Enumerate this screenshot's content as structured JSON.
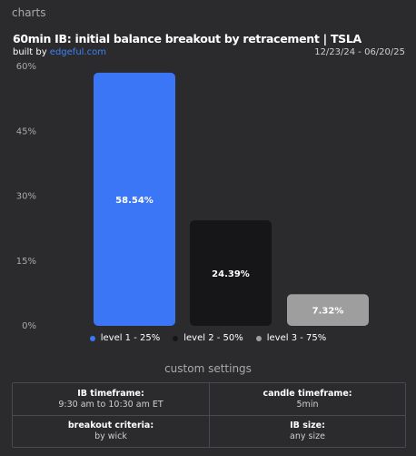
{
  "header": {
    "section_label": "charts",
    "title": "60min IB: initial balance breakout by retracement | TSLA",
    "built_by_prefix": "built by ",
    "built_by_link": "edgeful.com",
    "date_range": "12/23/24 - 06/20/25"
  },
  "chart_data": {
    "type": "bar",
    "categories": [
      "level 1 - 25%",
      "level 2 - 50%",
      "level 3 - 75%"
    ],
    "values": [
      58.54,
      24.39,
      7.32
    ],
    "value_labels": [
      "58.54%",
      "24.39%",
      "7.32%"
    ],
    "colors": [
      "#3b76f6",
      "#161618",
      "#9e9e9e"
    ],
    "label_colors": [
      "#ffffff",
      "#ffffff",
      "#ffffff"
    ],
    "ylim": [
      0,
      60
    ],
    "yticks": [
      0,
      15,
      30,
      45,
      60
    ],
    "ytick_labels": [
      "0%",
      "15%",
      "30%",
      "45%",
      "60%"
    ],
    "legend_position": "bottom",
    "grid": false
  },
  "settings": {
    "heading": "custom settings",
    "items": [
      {
        "label": "IB timeframe:",
        "value": "9:30 am to 10:30 am ET"
      },
      {
        "label": "candle timeframe:",
        "value": "5min"
      },
      {
        "label": "breakout criteria:",
        "value": "by wick"
      },
      {
        "label": "IB size:",
        "value": "any size"
      }
    ]
  }
}
